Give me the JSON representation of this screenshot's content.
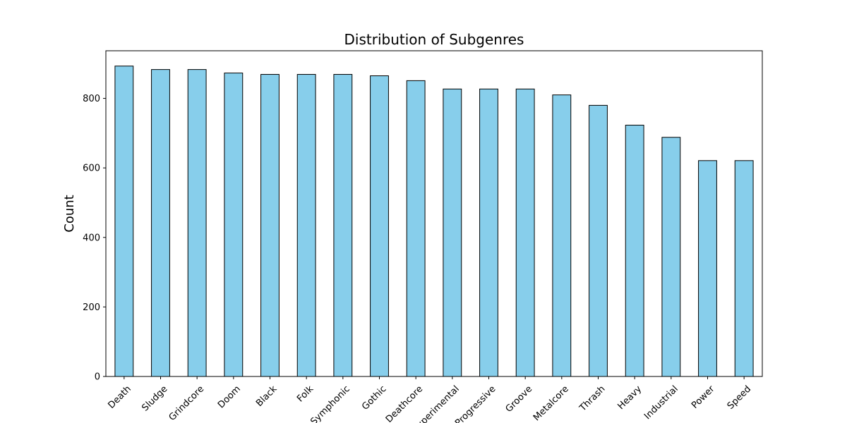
{
  "chart_data": {
    "type": "bar",
    "title": "Distribution of Subgenres",
    "xlabel": "",
    "ylabel": "Count",
    "categories": [
      "Death",
      "Sludge",
      "Grindcore",
      "Doom",
      "Black",
      "Folk",
      "Symphonic",
      "Gothic",
      "Deathcore",
      "Experimental",
      "Progressive",
      "Groove",
      "Metalcore",
      "Thrash",
      "Heavy",
      "Industrial",
      "Power",
      "Speed"
    ],
    "values": [
      893,
      883,
      883,
      873,
      869,
      869,
      869,
      865,
      851,
      827,
      827,
      827,
      810,
      780,
      723,
      688,
      621,
      621
    ],
    "ylim": [
      0,
      937
    ],
    "yticks": [
      0,
      200,
      400,
      600,
      800
    ],
    "bar_color": "#87CEEB",
    "edge_color": "#000000",
    "grid": false,
    "legend": "none"
  }
}
